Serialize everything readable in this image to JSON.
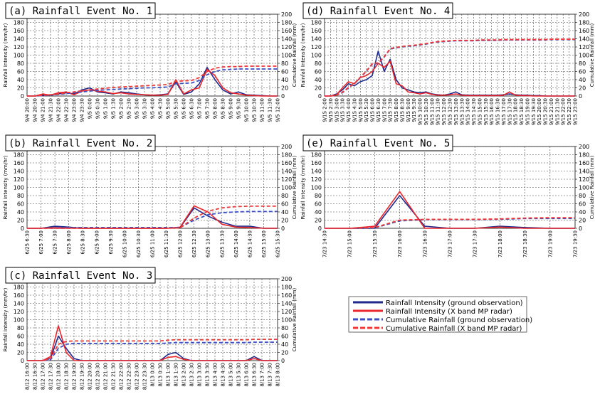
{
  "chart_data": [
    {
      "type": "line",
      "title": "(a)  Rainfall Event No. 1",
      "ylabel": "Rainfall Intensity (mm/hr)",
      "y2label": "Cumulative Rainfall (mm)",
      "ylim": [
        0,
        200
      ],
      "yticks": [
        0,
        20,
        40,
        60,
        80,
        100,
        120,
        140,
        160,
        180,
        200
      ],
      "y2lim": [
        0,
        200
      ],
      "y2ticks": [
        0,
        20,
        40,
        60,
        80,
        100,
        120,
        140,
        160,
        180,
        200
      ],
      "grid": true,
      "categories": [
        "9/4 20:00",
        "9/4 20:30",
        "9/4 21:00",
        "9/4 21:30",
        "9/4 22:00",
        "9/4 22:30",
        "9/4 23:00",
        "9/4 23:30",
        "9/5 0:00",
        "9/5 0:30",
        "9/5 1:00",
        "9/5 1:30",
        "9/5 2:00",
        "9/5 2:30",
        "9/5 3:00",
        "9/5 3:30",
        "9/5 4:00",
        "9/5 4:30",
        "9/5 5:00",
        "9/5 5:30",
        "9/5 6:00",
        "9/5 6:30",
        "9/5 7:00",
        "9/5 7:30",
        "9/5 8:00",
        "9/5 8:30",
        "9/5 9:00",
        "9/5 9:30",
        "9/5 10:00",
        "9/5 10:30",
        "9/5 11:00",
        "9/5 11:30",
        "9/5 12:00"
      ],
      "series": [
        {
          "name": "Rainfall Intensity (ground observation)",
          "color": "#1f2a8c",
          "dash": false,
          "values": [
            0,
            0,
            2,
            3,
            5,
            8,
            5,
            15,
            20,
            10,
            8,
            5,
            10,
            8,
            5,
            3,
            2,
            3,
            5,
            35,
            4,
            10,
            30,
            70,
            40,
            15,
            5,
            10,
            3,
            2,
            1,
            0,
            0
          ]
        },
        {
          "name": "Rainfall Intensity (X band MP radar)",
          "color": "#e8262b",
          "dash": false,
          "values": [
            0,
            0,
            5,
            2,
            8,
            10,
            3,
            12,
            15,
            12,
            10,
            6,
            8,
            5,
            4,
            3,
            2,
            2,
            4,
            40,
            5,
            15,
            20,
            65,
            50,
            20,
            8,
            5,
            2,
            1,
            0,
            0,
            0
          ]
        },
        {
          "name": "Cumulative Rainfall (ground observation)",
          "color": "#3a4fc0",
          "dash": true,
          "axis": "y2",
          "values": [
            0,
            0,
            1,
            2,
            4,
            6,
            8,
            10,
            12,
            14,
            15,
            16,
            17,
            18,
            19,
            20,
            20,
            21,
            22,
            30,
            31,
            32,
            38,
            52,
            60,
            64,
            65,
            66,
            66,
            66,
            66,
            66,
            66
          ]
        },
        {
          "name": "Cumulative Rainfall (X band MP radar)",
          "color": "#f03838",
          "dash": true,
          "axis": "y2",
          "values": [
            0,
            0,
            2,
            3,
            5,
            8,
            10,
            13,
            15,
            17,
            19,
            21,
            22,
            23,
            24,
            25,
            26,
            27,
            28,
            36,
            37,
            38,
            45,
            60,
            68,
            71,
            72,
            72,
            73,
            73,
            73,
            73,
            73
          ]
        }
      ]
    },
    {
      "type": "line",
      "title": "(b)  Rainfall Event No. 2",
      "ylabel": "Rainfall Intensity (mm/hr)",
      "y2label": "Cumulative Rainfall (mm)",
      "ylim": [
        0,
        200
      ],
      "yticks": [
        0,
        20,
        40,
        60,
        80,
        100,
        120,
        140,
        160,
        180,
        200
      ],
      "y2lim": [
        0,
        200
      ],
      "y2ticks": [
        0,
        20,
        40,
        60,
        80,
        100,
        120,
        140,
        160,
        180,
        200
      ],
      "grid": true,
      "categories": [
        "6/25 6:30",
        "6/25 7:00",
        "6/25 7:30",
        "6/25 8:00",
        "6/25 8:30",
        "6/25 9:00",
        "6/25 9:30",
        "6/25 10:00",
        "6/25 10:30",
        "6/25 11:00",
        "6/25 11:30",
        "6/25 12:00",
        "6/25 12:30",
        "6/25 13:00",
        "6/25 13:30",
        "6/25 14:00",
        "6/25 14:30",
        "6/25 15:00",
        "6/25 15:30"
      ],
      "series": [
        {
          "name": "Rainfall Intensity (ground observation)",
          "color": "#1f2a8c",
          "dash": false,
          "values": [
            0,
            0,
            5,
            3,
            0,
            0,
            0,
            0,
            0,
            0,
            0,
            2,
            50,
            30,
            15,
            5,
            5,
            0,
            0
          ]
        },
        {
          "name": "Rainfall Intensity (X band MP radar)",
          "color": "#e8262b",
          "dash": false,
          "values": [
            0,
            0,
            2,
            1,
            0,
            0,
            0,
            0,
            0,
            0,
            0,
            3,
            55,
            40,
            10,
            3,
            2,
            0,
            0
          ]
        },
        {
          "name": "Cumulative Rainfall (ground observation)",
          "color": "#3a4fc0",
          "dash": true,
          "axis": "y2",
          "values": [
            0,
            0,
            1,
            2,
            2,
            2,
            2,
            2,
            2,
            2,
            2,
            2,
            20,
            33,
            38,
            40,
            41,
            41,
            41
          ]
        },
        {
          "name": "Cumulative Rainfall (X band MP radar)",
          "color": "#f03838",
          "dash": true,
          "axis": "y2",
          "values": [
            0,
            0,
            0,
            0,
            0,
            0,
            0,
            0,
            0,
            0,
            0,
            1,
            25,
            42,
            50,
            53,
            54,
            54,
            54
          ]
        }
      ]
    },
    {
      "type": "line",
      "title": "(c)  Rainfall Event No. 3",
      "ylabel": "Rainfall Intensity (mm/hr)",
      "y2label": "Cumulative Rainfall (mm)",
      "ylim": [
        0,
        200
      ],
      "yticks": [
        0,
        20,
        40,
        60,
        80,
        100,
        120,
        140,
        160,
        180,
        200
      ],
      "y2lim": [
        0,
        200
      ],
      "y2ticks": [
        0,
        20,
        40,
        60,
        80,
        100,
        120,
        140,
        160,
        180,
        200
      ],
      "grid": true,
      "categories": [
        "8/12 16:00",
        "8/12 16:30",
        "8/12 17:00",
        "8/12 17:30",
        "8/12 18:00",
        "8/12 18:30",
        "8/12 19:00",
        "8/12 19:30",
        "8/12 20:00",
        "8/12 20:30",
        "8/12 21:00",
        "8/12 21:30",
        "8/12 22:00",
        "8/12 22:30",
        "8/12 23:00",
        "8/12 23:30",
        "8/13 0:00",
        "8/13 0:30",
        "8/13 1:00",
        "8/13 1:30",
        "8/13 2:00",
        "8/13 2:30",
        "8/13 3:00",
        "8/13 3:30",
        "8/13 4:00",
        "8/13 4:30",
        "8/13 5:00",
        "8/13 5:30",
        "8/13 6:00",
        "8/13 6:30",
        "8/13 7:00",
        "8/13 7:30",
        "8/13 8:00"
      ],
      "series": [
        {
          "name": "Rainfall Intensity (ground observation)",
          "color": "#1f2a8c",
          "dash": false,
          "values": [
            0,
            0,
            0,
            5,
            60,
            30,
            5,
            0,
            0,
            0,
            0,
            0,
            0,
            0,
            0,
            0,
            0,
            0,
            15,
            20,
            5,
            0,
            0,
            0,
            0,
            0,
            0,
            0,
            0,
            10,
            0,
            0,
            0
          ]
        },
        {
          "name": "Rainfall Intensity (X band MP radar)",
          "color": "#e8262b",
          "dash": false,
          "values": [
            0,
            0,
            0,
            10,
            85,
            20,
            0,
            0,
            0,
            0,
            0,
            0,
            0,
            0,
            0,
            0,
            0,
            0,
            8,
            10,
            3,
            0,
            0,
            0,
            0,
            0,
            0,
            0,
            0,
            5,
            0,
            0,
            0
          ]
        },
        {
          "name": "Cumulative Rainfall (ground observation)",
          "color": "#3a4fc0",
          "dash": true,
          "axis": "y2",
          "values": [
            0,
            0,
            0,
            2,
            30,
            40,
            42,
            42,
            42,
            42,
            42,
            42,
            42,
            42,
            42,
            42,
            42,
            42,
            43,
            44,
            44,
            44,
            44,
            44,
            44,
            44,
            44,
            44,
            44,
            45,
            45,
            45,
            45
          ]
        },
        {
          "name": "Cumulative Rainfall (X band MP radar)",
          "color": "#f03838",
          "dash": true,
          "axis": "y2",
          "values": [
            0,
            0,
            0,
            5,
            40,
            47,
            48,
            48,
            48,
            48,
            48,
            48,
            48,
            48,
            48,
            48,
            48,
            48,
            50,
            51,
            51,
            51,
            51,
            51,
            51,
            51,
            51,
            51,
            51,
            52,
            52,
            52,
            52
          ]
        }
      ]
    },
    {
      "type": "line",
      "title": "(d)  Rainfall Event No. 4",
      "ylabel": "Rainfall Intensity (mm/hr)",
      "y2label": "Cumulative Rainfall (mm)",
      "ylim": [
        0,
        200
      ],
      "yticks": [
        0,
        20,
        40,
        60,
        80,
        100,
        120,
        140,
        160,
        180,
        200
      ],
      "y2lim": [
        0,
        200
      ],
      "y2ticks": [
        0,
        20,
        40,
        60,
        80,
        100,
        120,
        140,
        160,
        180,
        200
      ],
      "grid": true,
      "categories": [
        "9/15 2:00",
        "9/15 2:30",
        "9/15 3:00",
        "9/15 3:30",
        "9/15 4:00",
        "9/15 4:30",
        "9/15 5:00",
        "9/15 5:30",
        "9/15 6:00",
        "9/15 6:30",
        "9/15 7:00",
        "9/15 7:30",
        "9/15 8:00",
        "9/15 8:30",
        "9/15 9:00",
        "9/15 9:30",
        "9/15 10:00",
        "9/15 10:30",
        "9/15 11:00",
        "9/15 11:30",
        "9/15 12:00",
        "9/15 12:30",
        "9/15 13:00",
        "9/15 13:30",
        "9/15 14:00",
        "9/15 14:30",
        "9/15 15:00",
        "9/15 15:30",
        "9/15 16:00",
        "9/15 16:30",
        "9/15 17:00",
        "9/15 17:30",
        "9/15 18:00",
        "9/15 18:30",
        "9/15 19:00",
        "9/15 19:30",
        "9/15 20:00",
        "9/15 20:30",
        "9/15 21:00",
        "9/15 21:30",
        "9/15 22:00",
        "9/15 22:30",
        "9/15 23:00"
      ],
      "series": [
        {
          "name": "Rainfall Intensity (ground observation)",
          "color": "#1f2a8c",
          "dash": false,
          "values": [
            0,
            0,
            5,
            15,
            30,
            25,
            35,
            40,
            50,
            110,
            60,
            90,
            40,
            20,
            15,
            10,
            8,
            10,
            5,
            3,
            2,
            5,
            10,
            3,
            2,
            2,
            2,
            2,
            2,
            2,
            3,
            5,
            3,
            2,
            2,
            1,
            1,
            0,
            0,
            0,
            0,
            0,
            0
          ]
        },
        {
          "name": "Rainfall Intensity (X band MP radar)",
          "color": "#e8262b",
          "dash": false,
          "values": [
            0,
            0,
            3,
            20,
            35,
            30,
            45,
            50,
            60,
            80,
            70,
            85,
            30,
            25,
            10,
            8,
            5,
            8,
            4,
            2,
            2,
            3,
            5,
            2,
            1,
            1,
            1,
            1,
            1,
            1,
            2,
            10,
            2,
            1,
            1,
            0,
            0,
            0,
            0,
            0,
            0,
            0,
            0
          ]
        },
        {
          "name": "Cumulative Rainfall (ground observation)",
          "color": "#3a4fc0",
          "dash": true,
          "axis": "y2",
          "values": [
            0,
            0,
            2,
            8,
            20,
            30,
            45,
            60,
            78,
            80,
            95,
            115,
            118,
            120,
            122,
            123,
            125,
            127,
            130,
            132,
            133,
            134,
            135,
            135,
            135,
            135,
            136,
            136,
            136,
            136,
            137,
            137,
            137,
            137,
            137,
            137,
            137,
            137,
            138,
            138,
            138,
            138,
            138
          ]
        },
        {
          "name": "Cumulative Rainfall (X band MP radar)",
          "color": "#f03838",
          "dash": true,
          "axis": "y2",
          "values": [
            0,
            0,
            2,
            9,
            21,
            31,
            46,
            61,
            79,
            81,
            96,
            116,
            119,
            121,
            123,
            124,
            126,
            128,
            131,
            133,
            134,
            135,
            136,
            136,
            136,
            136,
            137,
            137,
            137,
            137,
            138,
            138,
            138,
            138,
            138,
            138,
            138,
            138,
            139,
            139,
            139,
            139,
            139
          ]
        }
      ]
    },
    {
      "type": "line",
      "title": "(e)  Rainfall Event No. 5",
      "ylabel": "Rainfall Intensity (mm/hr)",
      "y2label": "Cumulative Rainfall (mm)",
      "ylim": [
        0,
        200
      ],
      "yticks": [
        0,
        20,
        40,
        60,
        80,
        100,
        120,
        140,
        160,
        180,
        200
      ],
      "y2lim": [
        0,
        200
      ],
      "y2ticks": [
        0,
        20,
        40,
        60,
        80,
        100,
        120,
        140,
        160,
        180,
        200
      ],
      "grid": true,
      "categories": [
        "7/23 14:30",
        "7/23 15:00",
        "7/23 15:30",
        "7/23 16:00",
        "7/23 16:30",
        "7/23 17:00",
        "7/23 17:30",
        "7/23 18:00",
        "7/23 18:30",
        "7/23 19:00",
        "7/23 19:30"
      ],
      "series": [
        {
          "name": "Rainfall Intensity (ground observation)",
          "color": "#1f2a8c",
          "dash": false,
          "values": [
            0,
            0,
            0,
            80,
            5,
            0,
            0,
            5,
            2,
            0,
            0
          ]
        },
        {
          "name": "Rainfall Intensity (X band MP radar)",
          "color": "#e8262b",
          "dash": false,
          "values": [
            0,
            0,
            5,
            90,
            0,
            0,
            0,
            3,
            0,
            0,
            0
          ]
        },
        {
          "name": "Cumulative Rainfall (ground observation)",
          "color": "#3a4fc0",
          "dash": true,
          "axis": "y2",
          "values": [
            0,
            0,
            1,
            18,
            21,
            21,
            21,
            22,
            24,
            24,
            24
          ]
        },
        {
          "name": "Cumulative Rainfall (X band MP radar)",
          "color": "#f03838",
          "dash": true,
          "axis": "y2",
          "values": [
            0,
            0,
            2,
            20,
            22,
            22,
            22,
            23,
            25,
            26,
            26
          ]
        }
      ]
    }
  ]
}
